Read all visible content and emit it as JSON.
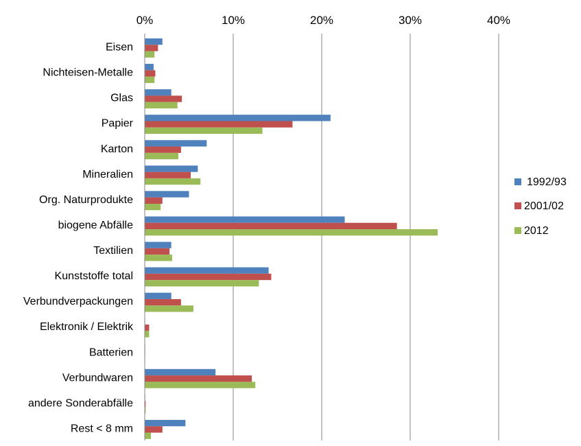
{
  "chart_data": {
    "type": "bar",
    "orientation": "horizontal",
    "categories": [
      "Eisen",
      "Nichteisen-Metalle",
      "Glas",
      "Papier",
      "Karton",
      "Mineralien",
      "Org. Naturprodukte",
      "biogene Abfälle",
      "Textilien",
      "Kunststoffe total",
      "Verbundverpackungen",
      "Elektronik / Elektrik",
      "Batterien",
      "Verbundwaren",
      "andere Sonderabfälle",
      "Rest < 8 mm"
    ],
    "series": [
      {
        "name": "1992/93",
        "color": "#4F81BD",
        "values": [
          2.0,
          1.0,
          3.0,
          21.0,
          7.0,
          6.0,
          5.0,
          22.6,
          3.0,
          14.0,
          3.0,
          0.0,
          0.05,
          8.0,
          0.05,
          4.6
        ]
      },
      {
        "name": "2001/02",
        "color": "#C0504D",
        "values": [
          1.5,
          1.2,
          4.2,
          16.7,
          4.1,
          5.2,
          2.0,
          28.5,
          2.8,
          14.3,
          4.1,
          0.5,
          0.05,
          12.1,
          0.1,
          2.0
        ]
      },
      {
        "name": "2012",
        "color": "#9BBB59",
        "values": [
          1.1,
          1.1,
          3.7,
          13.3,
          3.8,
          6.3,
          1.8,
          33.1,
          3.1,
          12.9,
          5.5,
          0.5,
          0.05,
          12.5,
          0.1,
          0.7
        ]
      }
    ],
    "x_ticks": [
      "0%",
      "10%",
      "20%",
      "30%",
      "40%"
    ],
    "xlim": [
      0,
      40
    ],
    "x_axis_position": "top",
    "grid": true,
    "legend_position": "right",
    "title": "",
    "xlabel": "",
    "ylabel": ""
  }
}
